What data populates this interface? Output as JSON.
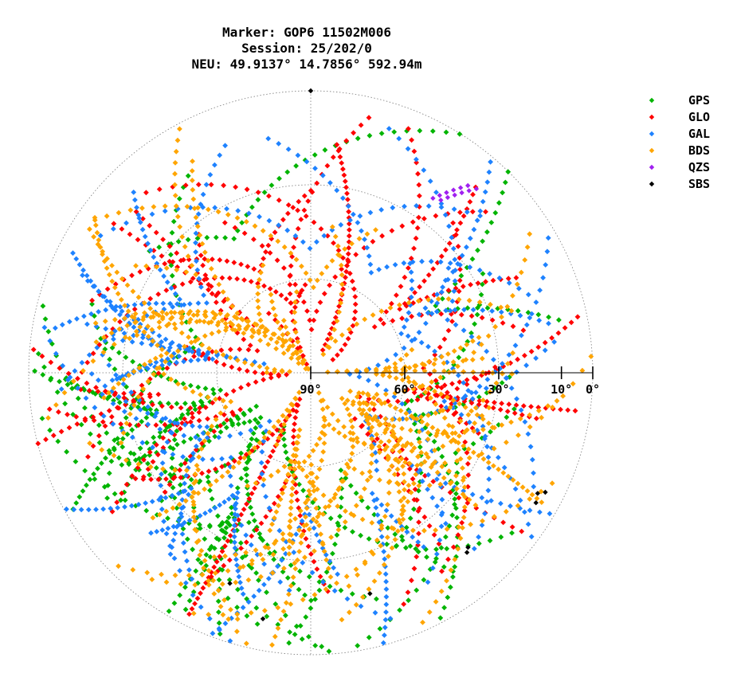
{
  "header": {
    "line1": "Marker: GOP6 11502M006",
    "line2": "Session: 25/202/0",
    "line3": "NEU: 49.9137° 14.7856° 592.94m"
  },
  "chart_data": {
    "type": "scatter",
    "projection": "polar skyplot (azimuth clockwise from north at top, radius = 90° − elevation)",
    "elevation_ticks": [
      {
        "value": 90,
        "label": "90°"
      },
      {
        "value": 60,
        "label": "60°"
      },
      {
        "value": 30,
        "label": "30°"
      },
      {
        "value": 10,
        "label": "10°"
      },
      {
        "value": 0,
        "label": "0°"
      }
    ],
    "elevation_grid": [
      0,
      30,
      60
    ],
    "azimuth_grid": [
      0,
      90,
      180,
      270
    ],
    "grid": true,
    "legend_position": "top-right",
    "series": [
      {
        "name": "GPS",
        "color": "#00b400",
        "az_ranges": [
          [
            55,
            305
          ]
        ],
        "el_range": [
          0,
          72
        ],
        "count": 560
      },
      {
        "name": "GLO",
        "color": "#ff0000",
        "az_ranges": [
          [
            0,
            360
          ]
        ],
        "el_range": [
          0,
          88
        ],
        "count": 620
      },
      {
        "name": "GAL",
        "color": "#1e82ff",
        "az_ranges": [
          [
            50,
            310
          ]
        ],
        "el_range": [
          0,
          76
        ],
        "count": 620
      },
      {
        "name": "BDS",
        "color": "#ffa500",
        "az_ranges": [
          [
            55,
            305
          ]
        ],
        "el_range": [
          0,
          90
        ],
        "count": 900
      },
      {
        "name": "QZS",
        "color": "#a020f0",
        "points": [
          [
            35,
            22
          ],
          [
            36,
            20
          ],
          [
            37,
            18
          ],
          [
            38,
            16
          ],
          [
            39,
            14
          ],
          [
            40,
            12
          ],
          [
            37,
            21
          ],
          [
            38,
            19
          ],
          [
            39,
            17
          ],
          [
            40,
            15
          ],
          [
            41,
            13
          ],
          [
            42,
            11
          ]
        ]
      },
      {
        "name": "SBS",
        "color": "#000000",
        "points": [
          [
            0,
            0
          ],
          [
            118,
            8
          ],
          [
            120,
            7
          ],
          [
            117,
            6
          ],
          [
            138,
            15
          ],
          [
            139,
            14
          ],
          [
            191,
            10
          ],
          [
            201,
            18
          ],
          [
            165,
            17
          ]
        ]
      }
    ]
  },
  "legend": [
    {
      "name": "GPS",
      "color": "#00b400"
    },
    {
      "name": "GLO",
      "color": "#ff0000"
    },
    {
      "name": "GAL",
      "color": "#1e82ff"
    },
    {
      "name": "BDS",
      "color": "#ffa500"
    },
    {
      "name": "QZS",
      "color": "#a020f0"
    },
    {
      "name": "SBS",
      "color": "#000000"
    }
  ]
}
